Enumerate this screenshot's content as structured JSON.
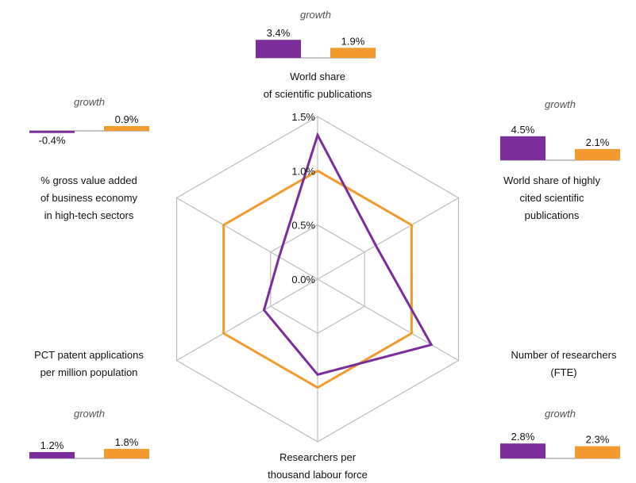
{
  "chart_data": {
    "type": "radar",
    "ticks": [
      "0.0%",
      "0.5%",
      "1.0%",
      "1.5%"
    ],
    "range": [
      0,
      1.5
    ],
    "colors": {
      "series_a": "#7b2d9c",
      "series_b": "#f39a2e",
      "grid": "#bdbdbd"
    },
    "axes": [
      {
        "id": "world-share-publications",
        "label_lines": [
          "World share",
          "of scientific publications"
        ]
      },
      {
        "id": "highly-cited",
        "label_lines": [
          "World share of highly",
          "cited scientific",
          "publications"
        ]
      },
      {
        "id": "researchers-fte",
        "label_lines": [
          "Number of researchers",
          "(FTE)"
        ]
      },
      {
        "id": "researchers-per-thousand",
        "label_lines": [
          "Researchers per",
          "thousand labour force"
        ]
      },
      {
        "id": "pct-patents",
        "label_lines": [
          "PCT patent applications",
          "per million population"
        ]
      },
      {
        "id": "gva-high-tech",
        "label_lines": [
          "% gross value added",
          "of business economy",
          "in high-tech sectors"
        ]
      }
    ],
    "series": [
      {
        "values": [
          1.33,
          0.62,
          1.21,
          0.88,
          0.57,
          0.41
        ]
      },
      {
        "values": [
          1.0,
          1.0,
          1.0,
          1.0,
          1.0,
          1.0
        ]
      }
    ],
    "growth": [
      {
        "axis": "world-share-publications",
        "heading": "growth",
        "values": [
          3.4,
          1.9
        ],
        "labels": [
          "3.4%",
          "1.9%"
        ]
      },
      {
        "axis": "highly-cited",
        "heading": "growth",
        "values": [
          4.5,
          2.1
        ],
        "labels": [
          "4.5%",
          "2.1%"
        ]
      },
      {
        "axis": "researchers-fte",
        "heading": "growth",
        "values": [
          2.8,
          2.3
        ],
        "labels": [
          "2.8%",
          "2.3%"
        ]
      },
      {
        "axis": "pct-patents",
        "heading": "growth",
        "values": [
          1.2,
          1.8
        ],
        "labels": [
          "1.2%",
          "1.8%"
        ]
      },
      {
        "axis": "gva-high-tech",
        "heading": "growth",
        "values": [
          -0.4,
          0.9
        ],
        "labels": [
          "-0.4%",
          "0.9%"
        ]
      }
    ]
  }
}
